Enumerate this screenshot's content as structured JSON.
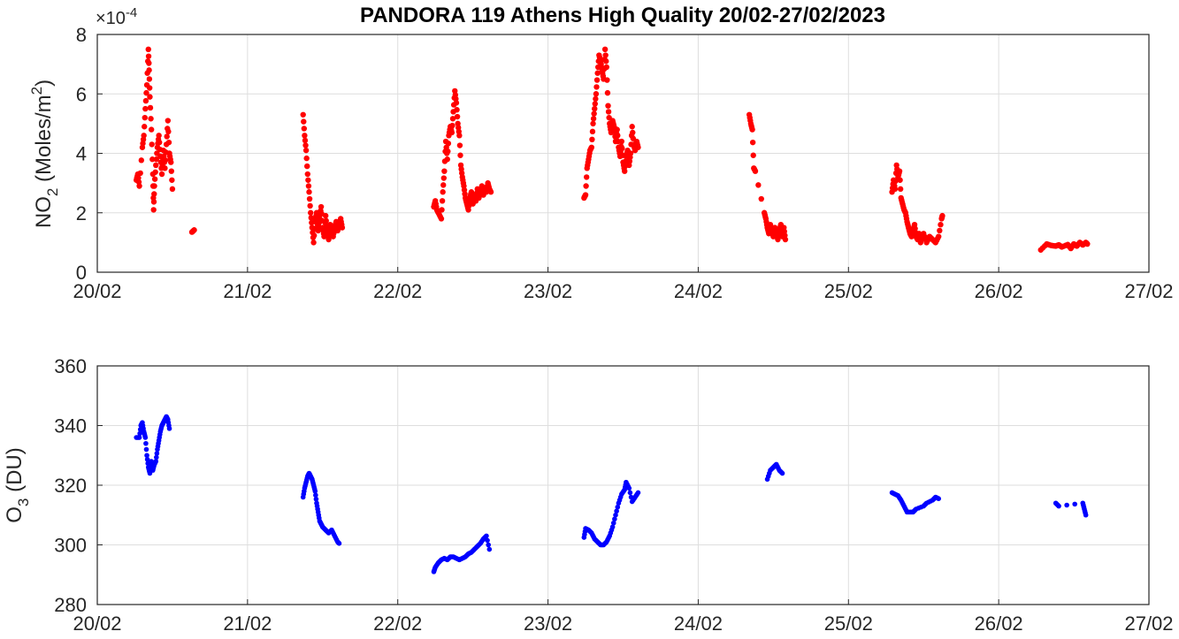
{
  "title": "PANDORA 119 Athens High Quality 20/02-27/02/2023",
  "chart_data": [
    {
      "type": "scatter",
      "ylabel_main": "NO",
      "ylabel_sub": "2",
      "ylabel_unit": "(Moles/m",
      "ylabel_unit_sup": "2",
      "ylabel_close": ")",
      "y_exponent_prefix": "×10",
      "y_exponent_power": "-4",
      "x_tick_labels": [
        "20/02",
        "21/02",
        "22/02",
        "23/02",
        "24/02",
        "25/02",
        "26/02",
        "27/02"
      ],
      "y_tick_labels": [
        "0",
        "2",
        "4",
        "6",
        "8"
      ],
      "xlim": [
        0,
        7
      ],
      "ylim": [
        0,
        8
      ],
      "grid": true,
      "color": "#ff0000",
      "segments": [
        [
          [
            0.26,
            3.1
          ],
          [
            0.27,
            3.3
          ],
          [
            0.28,
            2.9
          ],
          [
            0.3,
            4.2
          ],
          [
            0.31,
            4.6
          ],
          [
            0.32,
            5.5
          ],
          [
            0.33,
            6.3
          ],
          [
            0.34,
            7.5
          ],
          [
            0.345,
            6.8
          ],
          [
            0.35,
            5.9
          ],
          [
            0.36,
            4.8
          ],
          [
            0.37,
            3.3
          ],
          [
            0.375,
            2.1
          ],
          [
            0.38,
            2.9
          ],
          [
            0.39,
            3.6
          ],
          [
            0.4,
            4.2
          ],
          [
            0.41,
            4.6
          ],
          [
            0.42,
            3.9
          ],
          [
            0.43,
            3.3
          ],
          [
            0.44,
            4.1
          ],
          [
            0.45,
            3.5
          ],
          [
            0.46,
            4.3
          ],
          [
            0.47,
            5.1
          ],
          [
            0.48,
            4.0
          ],
          [
            0.49,
            3.7
          ],
          [
            0.5,
            2.8
          ]
        ],
        [
          [
            0.63,
            1.35
          ],
          [
            0.645,
            1.42
          ]
        ],
        [
          [
            1.37,
            5.3
          ],
          [
            1.38,
            4.6
          ],
          [
            1.39,
            4.1
          ],
          [
            1.4,
            3.3
          ],
          [
            1.41,
            2.7
          ],
          [
            1.42,
            2.0
          ],
          [
            1.43,
            1.5
          ],
          [
            1.44,
            1.0
          ],
          [
            1.45,
            1.7
          ],
          [
            1.46,
            2.0
          ],
          [
            1.47,
            1.4
          ],
          [
            1.48,
            1.8
          ],
          [
            1.49,
            2.2
          ],
          [
            1.5,
            1.5
          ],
          [
            1.51,
            1.2
          ],
          [
            1.52,
            1.9
          ],
          [
            1.53,
            1.4
          ],
          [
            1.54,
            1.1
          ],
          [
            1.55,
            1.6
          ],
          [
            1.56,
            1.3
          ],
          [
            1.57,
            1.2
          ],
          [
            1.58,
            1.5
          ],
          [
            1.59,
            1.7
          ],
          [
            1.6,
            1.4
          ],
          [
            1.61,
            1.6
          ],
          [
            1.62,
            1.8
          ],
          [
            1.63,
            1.5
          ]
        ],
        [
          [
            2.24,
            2.2
          ],
          [
            2.25,
            2.4
          ],
          [
            2.26,
            2.1
          ],
          [
            2.27,
            2.0
          ],
          [
            2.29,
            1.8
          ],
          [
            2.3,
            2.7
          ],
          [
            2.31,
            3.4
          ],
          [
            2.32,
            4.4
          ],
          [
            2.33,
            3.8
          ],
          [
            2.34,
            4.6
          ],
          [
            2.35,
            4.9
          ],
          [
            2.36,
            4.7
          ],
          [
            2.37,
            5.4
          ],
          [
            2.38,
            6.1
          ],
          [
            2.39,
            5.7
          ],
          [
            2.4,
            5.0
          ],
          [
            2.41,
            4.6
          ],
          [
            2.42,
            3.6
          ],
          [
            2.43,
            3.2
          ],
          [
            2.44,
            2.9
          ],
          [
            2.45,
            2.5
          ],
          [
            2.46,
            2.3
          ],
          [
            2.47,
            2.1
          ],
          [
            2.48,
            2.5
          ],
          [
            2.49,
            2.7
          ],
          [
            2.5,
            2.3
          ],
          [
            2.51,
            2.6
          ],
          [
            2.52,
            2.4
          ],
          [
            2.53,
            2.8
          ],
          [
            2.54,
            2.5
          ],
          [
            2.55,
            2.7
          ],
          [
            2.56,
            2.9
          ],
          [
            2.57,
            2.6
          ],
          [
            2.58,
            2.8
          ],
          [
            2.59,
            2.7
          ],
          [
            2.6,
            3.0
          ],
          [
            2.61,
            2.8
          ],
          [
            2.62,
            2.7
          ]
        ],
        [
          [
            3.24,
            2.5
          ],
          [
            3.25,
            2.6
          ],
          [
            3.26,
            3.5
          ],
          [
            3.27,
            3.8
          ],
          [
            3.28,
            4.1
          ],
          [
            3.29,
            4.2
          ],
          [
            3.3,
            5.0
          ],
          [
            3.31,
            5.5
          ],
          [
            3.32,
            6.0
          ],
          [
            3.33,
            6.7
          ],
          [
            3.34,
            7.3
          ],
          [
            3.35,
            7.1
          ],
          [
            3.36,
            6.8
          ],
          [
            3.37,
            6.5
          ],
          [
            3.38,
            7.5
          ],
          [
            3.39,
            6.9
          ],
          [
            3.4,
            5.6
          ],
          [
            3.41,
            5.0
          ],
          [
            3.42,
            4.7
          ],
          [
            3.43,
            5.1
          ],
          [
            3.44,
            4.9
          ],
          [
            3.45,
            4.4
          ],
          [
            3.46,
            4.8
          ],
          [
            3.47,
            4.2
          ],
          [
            3.48,
            3.9
          ],
          [
            3.49,
            4.4
          ],
          [
            3.5,
            3.7
          ],
          [
            3.51,
            3.4
          ],
          [
            3.52,
            3.9
          ],
          [
            3.53,
            4.1
          ],
          [
            3.54,
            3.6
          ],
          [
            3.55,
            4.0
          ],
          [
            3.56,
            4.9
          ],
          [
            3.57,
            4.3
          ],
          [
            3.58,
            4.1
          ],
          [
            3.59,
            4.4
          ],
          [
            3.6,
            4.2
          ]
        ],
        [
          [
            4.34,
            5.3
          ],
          [
            4.35,
            5.0
          ],
          [
            4.36,
            4.8
          ],
          [
            4.37,
            3.5
          ],
          [
            4.38,
            3.4
          ],
          [
            4.44,
            2.0
          ],
          [
            4.45,
            1.8
          ],
          [
            4.46,
            1.5
          ],
          [
            4.47,
            1.3
          ],
          [
            4.48,
            1.6
          ],
          [
            4.49,
            1.4
          ],
          [
            4.5,
            1.2
          ],
          [
            4.51,
            1.5
          ],
          [
            4.52,
            1.3
          ],
          [
            4.53,
            1.1
          ],
          [
            4.54,
            1.4
          ],
          [
            4.55,
            1.6
          ],
          [
            4.56,
            1.2
          ],
          [
            4.57,
            1.5
          ],
          [
            4.58,
            1.1
          ]
        ],
        [
          [
            5.29,
            2.7
          ],
          [
            5.3,
            3.1
          ],
          [
            5.31,
            2.8
          ],
          [
            5.32,
            3.6
          ],
          [
            5.33,
            3.2
          ],
          [
            5.34,
            3.4
          ],
          [
            5.35,
            2.5
          ],
          [
            5.36,
            2.3
          ],
          [
            5.37,
            2.1
          ],
          [
            5.38,
            2.0
          ],
          [
            5.39,
            1.7
          ],
          [
            5.4,
            1.5
          ],
          [
            5.41,
            1.3
          ],
          [
            5.42,
            1.2
          ],
          [
            5.43,
            1.4
          ],
          [
            5.44,
            1.6
          ],
          [
            5.45,
            1.2
          ],
          [
            5.46,
            1.1
          ],
          [
            5.47,
            1.3
          ],
          [
            5.48,
            1.0
          ],
          [
            5.49,
            1.2
          ],
          [
            5.5,
            1.3
          ],
          [
            5.52,
            1.0
          ],
          [
            5.54,
            1.2
          ],
          [
            5.56,
            1.1
          ],
          [
            5.58,
            1.0
          ],
          [
            5.6,
            1.2
          ],
          [
            5.62,
            1.8
          ],
          [
            5.625,
            1.9
          ]
        ],
        [
          [
            6.28,
            0.75
          ],
          [
            6.32,
            0.95
          ],
          [
            6.35,
            0.9
          ],
          [
            6.38,
            0.88
          ],
          [
            6.4,
            0.92
          ],
          [
            6.42,
            0.85
          ],
          [
            6.46,
            0.93
          ],
          [
            6.48,
            0.8
          ],
          [
            6.5,
            0.95
          ],
          [
            6.52,
            0.88
          ],
          [
            6.54,
            1.0
          ],
          [
            6.56,
            0.92
          ],
          [
            6.58,
            1.0
          ],
          [
            6.59,
            0.95
          ]
        ]
      ]
    },
    {
      "type": "scatter",
      "ylabel_main": "O",
      "ylabel_sub": "3",
      "ylabel_unit": "(DU)",
      "x_tick_labels": [
        "20/02",
        "21/02",
        "22/02",
        "23/02",
        "24/02",
        "25/02",
        "26/02",
        "27/02"
      ],
      "y_tick_labels": [
        "280",
        "300",
        "320",
        "340",
        "360"
      ],
      "xlim": [
        0,
        7
      ],
      "ylim": [
        280,
        360
      ],
      "grid": true,
      "color": "#0000ff",
      "segments": [
        [
          [
            0.26,
            336
          ],
          [
            0.28,
            336
          ],
          [
            0.29,
            340
          ],
          [
            0.3,
            341
          ],
          [
            0.31,
            338
          ],
          [
            0.32,
            336
          ],
          [
            0.33,
            330
          ],
          [
            0.34,
            326
          ],
          [
            0.35,
            324
          ],
          [
            0.36,
            328
          ],
          [
            0.37,
            325
          ],
          [
            0.38,
            327
          ],
          [
            0.39,
            328
          ],
          [
            0.4,
            332
          ],
          [
            0.41,
            335
          ],
          [
            0.42,
            338
          ],
          [
            0.43,
            340
          ],
          [
            0.44,
            341
          ],
          [
            0.45,
            342
          ],
          [
            0.46,
            343
          ],
          [
            0.47,
            342
          ],
          [
            0.48,
            339
          ]
        ],
        [
          [
            1.37,
            316
          ],
          [
            1.38,
            319
          ],
          [
            1.39,
            321
          ],
          [
            1.4,
            323
          ],
          [
            1.41,
            324
          ],
          [
            1.42,
            323
          ],
          [
            1.43,
            322
          ],
          [
            1.44,
            320
          ],
          [
            1.45,
            318
          ],
          [
            1.46,
            314
          ],
          [
            1.47,
            311
          ],
          [
            1.48,
            308
          ],
          [
            1.49,
            307
          ],
          [
            1.5,
            306
          ],
          [
            1.52,
            305
          ],
          [
            1.54,
            304
          ],
          [
            1.56,
            305
          ],
          [
            1.58,
            303
          ],
          [
            1.6,
            301
          ],
          [
            1.61,
            300.5
          ]
        ],
        [
          [
            2.24,
            291
          ],
          [
            2.25,
            292.5
          ],
          [
            2.27,
            294
          ],
          [
            2.29,
            295
          ],
          [
            2.31,
            295.5
          ],
          [
            2.33,
            295
          ],
          [
            2.35,
            296
          ],
          [
            2.37,
            296
          ],
          [
            2.39,
            295.5
          ],
          [
            2.41,
            295
          ],
          [
            2.43,
            295.5
          ],
          [
            2.45,
            296
          ],
          [
            2.47,
            297
          ],
          [
            2.49,
            297.5
          ],
          [
            2.51,
            298.5
          ],
          [
            2.53,
            299.5
          ],
          [
            2.55,
            300.5
          ],
          [
            2.57,
            302
          ],
          [
            2.59,
            303
          ],
          [
            2.61,
            298.5
          ]
        ],
        [
          [
            3.24,
            302.5
          ],
          [
            3.25,
            305.5
          ],
          [
            3.27,
            305
          ],
          [
            3.29,
            304
          ],
          [
            3.31,
            302
          ],
          [
            3.33,
            301
          ],
          [
            3.35,
            300
          ],
          [
            3.37,
            300
          ],
          [
            3.39,
            301
          ],
          [
            3.41,
            303
          ],
          [
            3.43,
            306
          ],
          [
            3.45,
            310
          ],
          [
            3.47,
            314
          ],
          [
            3.49,
            317
          ],
          [
            3.51,
            318.5
          ],
          [
            3.52,
            321
          ],
          [
            3.54,
            319
          ],
          [
            3.56,
            314.5
          ],
          [
            3.58,
            316
          ],
          [
            3.6,
            317.5
          ]
        ],
        [
          [
            4.46,
            322
          ],
          [
            4.48,
            325
          ],
          [
            4.5,
            326
          ],
          [
            4.52,
            327
          ],
          [
            4.54,
            325
          ],
          [
            4.56,
            324
          ]
        ],
        [
          [
            5.29,
            317.5
          ],
          [
            5.31,
            317
          ],
          [
            5.33,
            316.5
          ],
          [
            5.35,
            315
          ],
          [
            5.37,
            313
          ],
          [
            5.39,
            311
          ],
          [
            5.41,
            311
          ],
          [
            5.43,
            311
          ],
          [
            5.45,
            312
          ],
          [
            5.5,
            313
          ],
          [
            5.52,
            314
          ],
          [
            5.56,
            315
          ],
          [
            5.58,
            316
          ],
          [
            5.6,
            315.5
          ]
        ],
        [
          [
            6.38,
            314
          ],
          [
            6.4,
            313
          ],
          [
            6.56,
            314
          ],
          [
            6.57,
            312
          ],
          [
            6.58,
            310
          ]
        ]
      ]
    }
  ]
}
